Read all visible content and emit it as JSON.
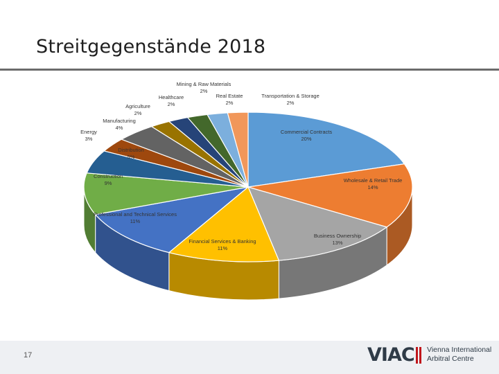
{
  "slide": {
    "title": "Streitgegenstände 2018",
    "page_number": "17"
  },
  "logo": {
    "mark": "VIAC",
    "line1": "Vienna International",
    "line2": "Arbitral Centre"
  },
  "chart_data": {
    "type": "pie",
    "style": "3d",
    "slices": [
      {
        "label": "Commercial Contracts",
        "value": 20,
        "value_label": "20%",
        "color": "#5b9bd5"
      },
      {
        "label": "Wholesale & Retail Trade",
        "value": 14,
        "value_label": "14%",
        "color": "#ed7d31"
      },
      {
        "label": "Business Ownership",
        "value": 13,
        "value_label": "13%",
        "color": "#a5a5a5"
      },
      {
        "label": "Financial Services & Banking",
        "value": 11,
        "value_label": "11%",
        "color": "#ffc000"
      },
      {
        "label": "Professional and Technical Services",
        "value": 11,
        "value_label": "11%",
        "color": "#4472c4"
      },
      {
        "label": "Construction",
        "value": 9,
        "value_label": "9%",
        "color": "#70ad47"
      },
      {
        "label": "Distribution",
        "value": 5,
        "value_label": "5%",
        "color": "#255e91"
      },
      {
        "label": "Energy",
        "value": 3,
        "value_label": "3%",
        "color": "#9e480e"
      },
      {
        "label": "Manufacturing",
        "value": 4,
        "value_label": "4%",
        "color": "#636363"
      },
      {
        "label": "Agriculture",
        "value": 2,
        "value_label": "2%",
        "color": "#997300"
      },
      {
        "label": "Healthcare",
        "value": 2,
        "value_label": "2%",
        "color": "#264478"
      },
      {
        "label": "Mining & Raw Materials",
        "value": 2,
        "value_label": "2%",
        "color": "#43682b"
      },
      {
        "label": "Real Estate",
        "value": 2,
        "value_label": "2%",
        "color": "#7cafdd"
      },
      {
        "label": "Transportation & Storage",
        "value": 2,
        "value_label": "2%",
        "color": "#f1975a"
      }
    ]
  }
}
